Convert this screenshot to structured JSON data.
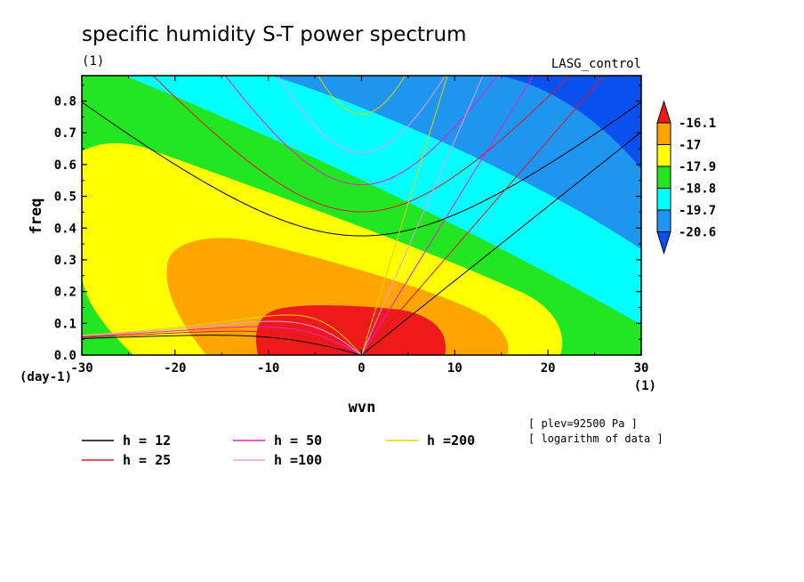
{
  "chart_data": {
    "type": "heatmap",
    "title": "specific humidity S-T power spectrum",
    "subtitle_left": "(1)",
    "subtitle_right": "LASG_control",
    "xlabel": "wvn",
    "ylabel": "freq",
    "x_unit": "(1)",
    "y_unit": "(day-1)",
    "xlim": [
      -30,
      30
    ],
    "ylim": [
      0,
      0.88
    ],
    "x_ticks": [
      -30,
      -20,
      -10,
      0,
      10,
      20,
      30
    ],
    "x_tick_labels": [
      "-30",
      "-20",
      "-10",
      "0",
      "10",
      "20",
      "30"
    ],
    "y_ticks": [
      0,
      0.1,
      0.2,
      0.3,
      0.4,
      0.5,
      0.6,
      0.7,
      0.8
    ],
    "y_tick_labels": [
      "0.0",
      "0.1",
      "0.2",
      "0.3",
      "0.4",
      "0.5",
      "0.6",
      "0.7",
      "0.8"
    ],
    "colorbar": {
      "levels": [
        "-16.1",
        "-17",
        "-17.9",
        "-18.8",
        "-19.7",
        "-20.6"
      ],
      "colors": [
        "#ee1a1a",
        "#ffa500",
        "#ffff00",
        "#22e622",
        "#00ffff",
        "#1e96f0",
        "#0a50ee"
      ]
    },
    "dispersion_curves": [
      {
        "label": "h = 12",
        "h": 12,
        "color": "#000000"
      },
      {
        "label": "h = 25",
        "h": 25,
        "color": "#e8112d"
      },
      {
        "label": "h = 50",
        "h": 50,
        "color": "#e61ecc"
      },
      {
        "label": "h =100",
        "h": 100,
        "color": "#e699e6"
      },
      {
        "label": "h =200",
        "h": 200,
        "color": "#e6d200"
      }
    ],
    "notes": [
      "[ plev=92500 Pa ]",
      "[ logarithm of data ]"
    ]
  }
}
